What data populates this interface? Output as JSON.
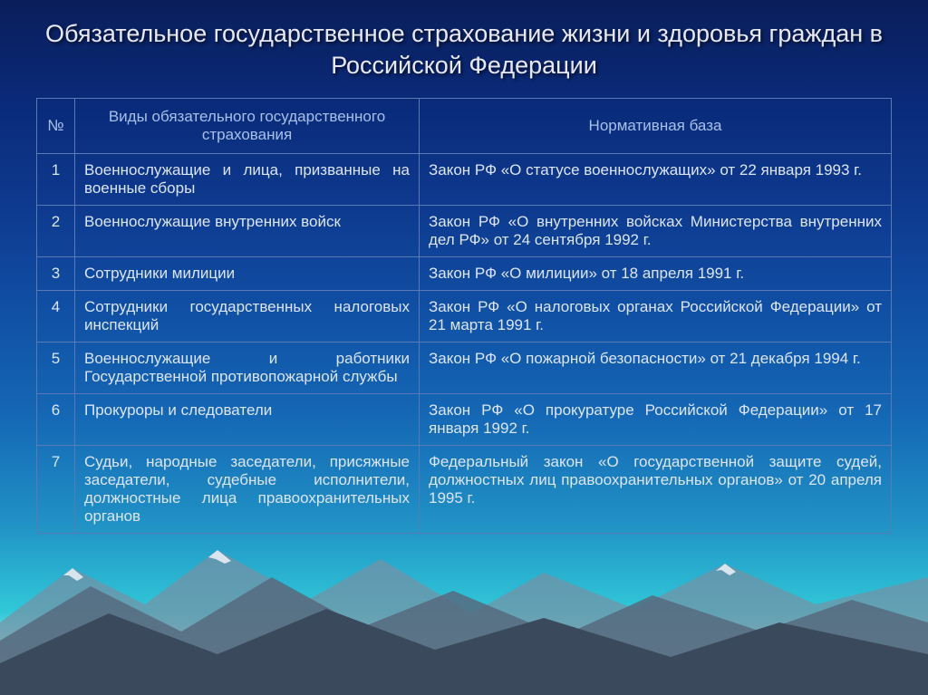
{
  "title": "Обязательное государственное страхование жизни и здоровья граждан в Российской Федерации",
  "columns": {
    "num": "№",
    "type": "Виды обязательного государственного страхования",
    "norm": "Нормативная база"
  },
  "rows": [
    {
      "num": "1",
      "type": "Военнослужащие и лица, призванные на военные сборы",
      "norm": "Закон РФ «О статусе военнослужащих» от 22 января 1993 г."
    },
    {
      "num": "2",
      "type": "Военнослужащие внутренних войск",
      "norm": "Закон РФ «О внутренних войсках Министерства внутренних дел РФ» от 24 сентября 1992 г."
    },
    {
      "num": "3",
      "type": "Сотрудники милиции",
      "norm": "Закон РФ «О милиции» от 18 апреля 1991 г."
    },
    {
      "num": "4",
      "type": "Сотрудники государственных налоговых инспекций",
      "norm": "Закон РФ «О налоговых органах Российской Федерации» от 21 марта 1991 г."
    },
    {
      "num": "5",
      "type": "Военнослужащие и работники Государственной противопожарной службы",
      "norm": "Закон РФ «О пожарной безопасности» от 21 декабря 1994 г."
    },
    {
      "num": "6",
      "type": "Прокуроры и следователи",
      "norm": "Закон РФ «О прокуратуре Российской Федерации» от 17 января 1992 г."
    },
    {
      "num": "7",
      "type": "Судьи, народные заседатели, присяжные заседатели, судебные исполнители, должностные лица правоохранительных органов",
      "norm": "Федеральный закон «О государственной защите судей, должностных лиц правоохранительных органов» от 20 апреля 1995 г."
    }
  ],
  "style": {
    "title_color": "#e8e8f0",
    "title_fontsize": 27,
    "cell_text_color": "#dce5f5",
    "header_text_color": "#a8c0e8",
    "border_color": "#5a7ab5",
    "cell_fontsize": 17,
    "background_gradient": [
      "#0a1e5a",
      "#0a2a7a",
      "#0e3a8f",
      "#1050a5",
      "#1568b5",
      "#2090c5",
      "#30c8d8",
      "#ffffff"
    ],
    "mountain_colors": {
      "dark": "#3a4a5c",
      "mid": "#566a7e",
      "light": "#7890a4",
      "snow": "#d8e4ee"
    }
  }
}
